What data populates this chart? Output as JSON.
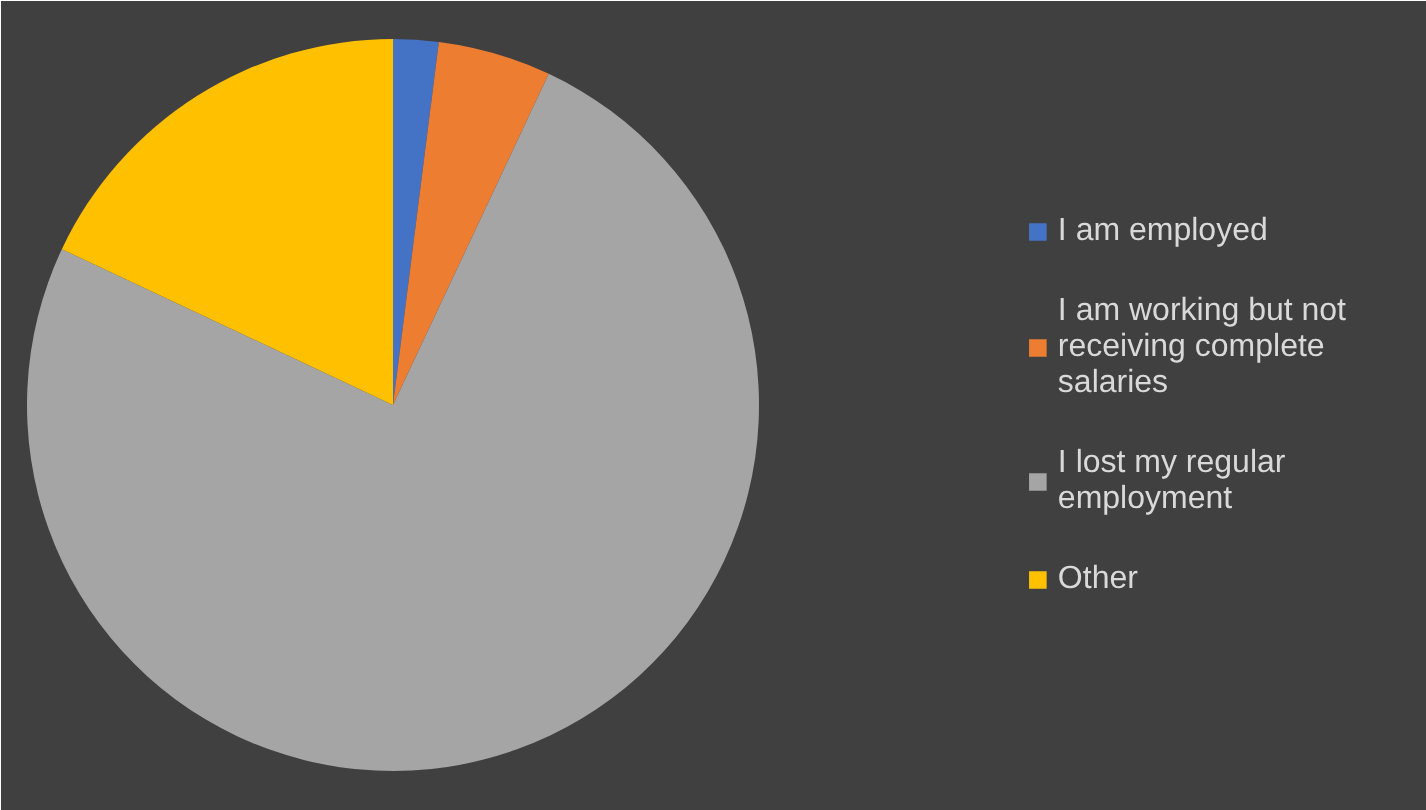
{
  "chart_data": {
    "type": "pie",
    "categories": [
      "I am employed",
      "I am working but not receiving complete salaries",
      "I lost my regular employment",
      "Other"
    ],
    "values": [
      2,
      5,
      75,
      18
    ],
    "colors": [
      "#4472c4",
      "#ed7d31",
      "#a5a5a5",
      "#ffc000"
    ],
    "legend": "right"
  }
}
